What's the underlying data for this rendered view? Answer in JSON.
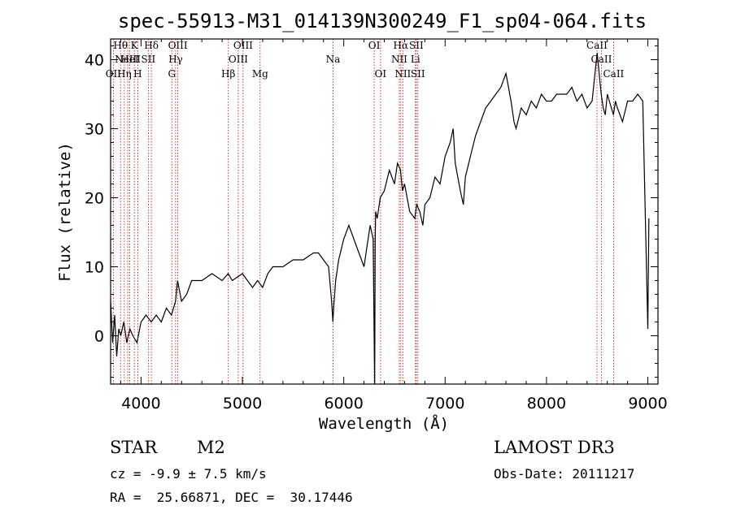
{
  "chart_data": {
    "type": "line",
    "title": "spec-55913-M31_014139N300249_F1_sp04-064.fits",
    "xlabel": "Wavelength (Å)",
    "ylabel": "Flux (relative)",
    "xlim": [
      3700,
      9100
    ],
    "ylim": [
      -7,
      43
    ],
    "xticks": [
      4000,
      5000,
      6000,
      7000,
      8000,
      9000
    ],
    "yticks": [
      0,
      10,
      20,
      30,
      40
    ],
    "series": [
      {
        "name": "flux",
        "x": [
          3700,
          3720,
          3740,
          3760,
          3780,
          3800,
          3830,
          3860,
          3890,
          3920,
          3960,
          4000,
          4050,
          4100,
          4150,
          4200,
          4250,
          4300,
          4340,
          4360,
          4400,
          4450,
          4500,
          4600,
          4700,
          4800,
          4860,
          4900,
          5000,
          5050,
          5100,
          5150,
          5200,
          5250,
          5300,
          5400,
          5500,
          5600,
          5700,
          5750,
          5800,
          5850,
          5880,
          5893,
          5900,
          5920,
          5950,
          6000,
          6050,
          6100,
          6150,
          6200,
          6230,
          6260,
          6290,
          6300,
          6305,
          6310,
          6315,
          6330,
          6360,
          6400,
          6450,
          6500,
          6530,
          6560,
          6580,
          6600,
          6650,
          6700,
          6720,
          6750,
          6780,
          6800,
          6850,
          6900,
          6950,
          7000,
          7050,
          7080,
          7100,
          7150,
          7180,
          7200,
          7250,
          7300,
          7350,
          7400,
          7450,
          7500,
          7550,
          7600,
          7650,
          7680,
          7700,
          7750,
          7800,
          7850,
          7900,
          7950,
          8000,
          8050,
          8100,
          8150,
          8200,
          8250,
          8300,
          8350,
          8400,
          8450,
          8500,
          8520,
          8540,
          8560,
          8580,
          8600,
          8620,
          8640,
          8660,
          8680,
          8700,
          8750,
          8800,
          8850,
          8900,
          8950,
          9000,
          9010
        ],
        "values": [
          5,
          -1,
          3,
          -3,
          1,
          0,
          2,
          -1,
          1,
          0,
          -1,
          2,
          3,
          2,
          3,
          2,
          4,
          3,
          5,
          8,
          5,
          6,
          8,
          8,
          9,
          8,
          9,
          8,
          9,
          8,
          7,
          8,
          7,
          9,
          10,
          10,
          11,
          11,
          12,
          12,
          11,
          10,
          5,
          2,
          4,
          8,
          11,
          14,
          16,
          14,
          12,
          10,
          13,
          16,
          14,
          0,
          -7,
          14,
          18,
          17,
          20,
          21,
          24,
          22,
          25,
          24,
          21,
          22,
          18,
          17,
          19,
          18,
          16,
          19,
          20,
          23,
          22,
          26,
          28,
          30,
          25,
          21,
          19,
          23,
          26,
          29,
          31,
          33,
          34,
          35,
          36,
          38,
          34,
          31,
          30,
          33,
          32,
          34,
          33,
          35,
          34,
          34,
          35,
          35,
          35,
          36,
          34,
          35,
          33,
          34,
          41,
          38,
          35,
          33,
          32,
          35,
          34,
          33,
          32,
          34,
          33,
          31,
          34,
          34,
          35,
          34,
          1,
          17
        ]
      }
    ],
    "lines": [
      {
        "wl": 3727,
        "label": "OII",
        "row": 2
      },
      {
        "wl": 3798,
        "label": "Hθ",
        "row": 0
      },
      {
        "wl": 3835,
        "label": "Hη",
        "row": 2
      },
      {
        "wl": 3869,
        "label": "NeIII",
        "row": 1
      },
      {
        "wl": 3889,
        "label": "HeI",
        "row": 1
      },
      {
        "wl": 3934,
        "label": "K",
        "row": 0
      },
      {
        "wl": 3968,
        "label": "H",
        "row": 2
      },
      {
        "wl": 4072,
        "label": "SII",
        "row": 1
      },
      {
        "wl": 4102,
        "label": "Hδ",
        "row": 0
      },
      {
        "wl": 4304,
        "label": "G",
        "row": 2
      },
      {
        "wl": 4341,
        "label": "Hγ",
        "row": 1
      },
      {
        "wl": 4363,
        "label": "OIII",
        "row": 0
      },
      {
        "wl": 4861,
        "label": "Hβ",
        "row": 2
      },
      {
        "wl": 4959,
        "label": "OIII",
        "row": 1
      },
      {
        "wl": 5007,
        "label": "OIII",
        "row": 0
      },
      {
        "wl": 5175,
        "label": "Mg",
        "row": 2
      },
      {
        "wl": 5894,
        "label": "Na",
        "row": 1
      },
      {
        "wl": 6300,
        "label": "OI",
        "row": 0
      },
      {
        "wl": 6363,
        "label": "OI",
        "row": 2
      },
      {
        "wl": 6548,
        "label": "NII",
        "row": 1
      },
      {
        "wl": 6563,
        "label": "Hα",
        "row": 0
      },
      {
        "wl": 6583,
        "label": "NII",
        "row": 2
      },
      {
        "wl": 6707,
        "label": "Li",
        "row": 1
      },
      {
        "wl": 6716,
        "label": "SII",
        "row": 0
      },
      {
        "wl": 6731,
        "label": "SII",
        "row": 2
      },
      {
        "wl": 8498,
        "label": "CaII",
        "row": 0
      },
      {
        "wl": 8542,
        "label": "CaII",
        "row": 1
      },
      {
        "wl": 8662,
        "label": "CaII",
        "row": 2
      }
    ]
  },
  "info": {
    "class": "STAR",
    "subclass": "M2",
    "survey": "LAMOST DR3",
    "cz": "cz = -9.9 ± 7.5 km/s",
    "obs_date": "Obs-Date: 20111217",
    "coords": "RA =  25.66871, DEC =  30.17446"
  },
  "colors": {
    "spectrum": "#000000",
    "line_markers": "#cc0000"
  }
}
